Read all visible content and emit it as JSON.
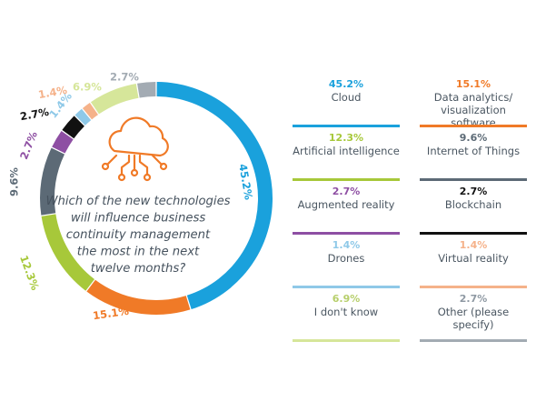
{
  "chart_data": {
    "type": "pie",
    "donut": true,
    "center_text": [
      "Which of the new technologies",
      "will influence business",
      "continuity management",
      "the most in the next",
      "twelve months?"
    ],
    "center_icon": "cloud-network-icon",
    "slices": [
      {
        "name": "Cloud",
        "value": 45.2,
        "label": "45.2%",
        "color": "#1aa1dc"
      },
      {
        "name": "Data analytics/ visualization software",
        "lines": [
          "Data analytics/",
          "visualization software"
        ],
        "value": 15.1,
        "label": "15.1%",
        "color": "#f07a27"
      },
      {
        "name": "Artificial intelligence",
        "value": 12.3,
        "label": "12.3%",
        "color": "#a7c83a"
      },
      {
        "name": "Internet of Things",
        "value": 9.6,
        "label": "9.6%",
        "color": "#5c6a76"
      },
      {
        "name": "Augmented reality",
        "value": 2.7,
        "label": "2.7%",
        "color": "#8e4fa3"
      },
      {
        "name": "Blockchain",
        "value": 2.7,
        "label": "2.7%",
        "color": "#111111"
      },
      {
        "name": "Drones",
        "value": 1.4,
        "label": "1.4%",
        "color": "#8fc9e8"
      },
      {
        "name": "Virtual reality",
        "value": 1.4,
        "label": "1.4%",
        "color": "#f5b28a"
      },
      {
        "name": "I don't know",
        "value": 6.9,
        "label": "6.9%",
        "color": "#d6e69a"
      },
      {
        "name": "Other (please specify)",
        "value": 2.7,
        "label": "2.7%",
        "color": "#a3abb3"
      }
    ]
  }
}
